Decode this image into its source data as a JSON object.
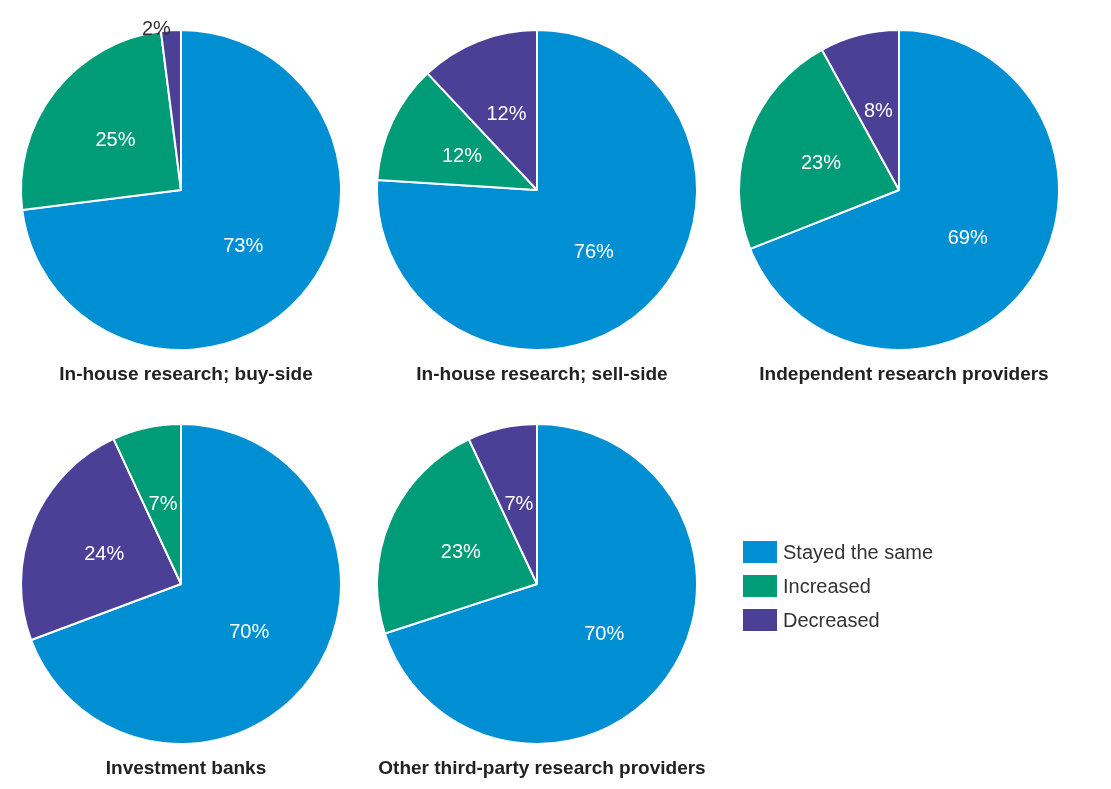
{
  "chart_data": [
    {
      "type": "pie",
      "title": "In-house research; buy-side",
      "categories": [
        null,
        null,
        null
      ],
      "values": [
        73,
        25,
        2
      ],
      "value_labels": [
        "73%",
        "25%",
        "2%"
      ],
      "colors": [
        "#008fd3",
        "#009b77",
        "#4b3f96"
      ]
    },
    {
      "type": "pie",
      "title": "In-house research; sell-side",
      "categories": [
        null,
        null,
        null
      ],
      "values": [
        76,
        12,
        12
      ],
      "value_labels": [
        "76%",
        "12%",
        "12%"
      ],
      "colors": [
        "#008fd3",
        "#009b77",
        "#4b3f96"
      ]
    },
    {
      "type": "pie",
      "title": "Independent research providers",
      "categories": [
        null,
        null,
        null
      ],
      "values": [
        69,
        23,
        8
      ],
      "value_labels": [
        "69%",
        "23%",
        "8%"
      ],
      "colors": [
        "#008fd3",
        "#009b77",
        "#4b3f96"
      ]
    },
    {
      "type": "pie",
      "title": "Investment banks",
      "categories": [
        null,
        null,
        null
      ],
      "values": [
        70,
        24,
        7
      ],
      "value_labels": [
        "70%",
        "24%",
        "7%"
      ],
      "colors": [
        "#008fd3",
        "#4b3f96",
        "#009b77"
      ]
    },
    {
      "type": "pie",
      "title": "Other third-party research providers",
      "categories": [
        "Stayed the same",
        "Increased",
        "Decreased"
      ],
      "values": [
        70,
        23,
        7
      ],
      "value_labels": [
        "70%",
        "23%",
        "7%"
      ],
      "colors": [
        "#008fd3",
        "#009b77",
        "#4b3f96"
      ],
      "legend": "right"
    }
  ]
}
